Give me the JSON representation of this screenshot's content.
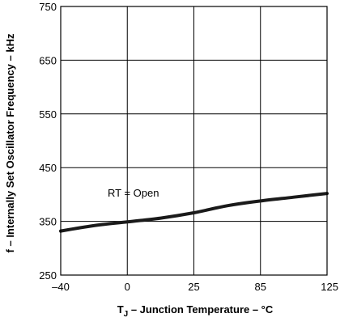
{
  "chart_data": {
    "type": "line",
    "title": "",
    "xlabel_main": "T",
    "xlabel_sub": "J",
    "xlabel_rest": " – Junction Temperature – °C",
    "ylabel": "f – Internally Set Oscillator Frequency – kHz",
    "categories": [
      "–40",
      "0",
      "25",
      "85",
      "125"
    ],
    "ylim": [
      250,
      750
    ],
    "yticks": [
      250,
      350,
      450,
      550,
      650,
      750
    ],
    "grid": true,
    "legend": "none",
    "annotations": [
      {
        "text": "RT = Open"
      }
    ],
    "series": [
      {
        "x": [
          0,
          0.5,
          1,
          1.5,
          2,
          2.5,
          3,
          3.5,
          4
        ],
        "values": [
          332,
          342,
          349,
          356,
          366,
          379,
          388,
          395,
          402
        ]
      }
    ]
  },
  "colors": {
    "line": "#1a1a1a",
    "frame": "#000000",
    "grid": "#000000",
    "background": "#ffffff"
  }
}
